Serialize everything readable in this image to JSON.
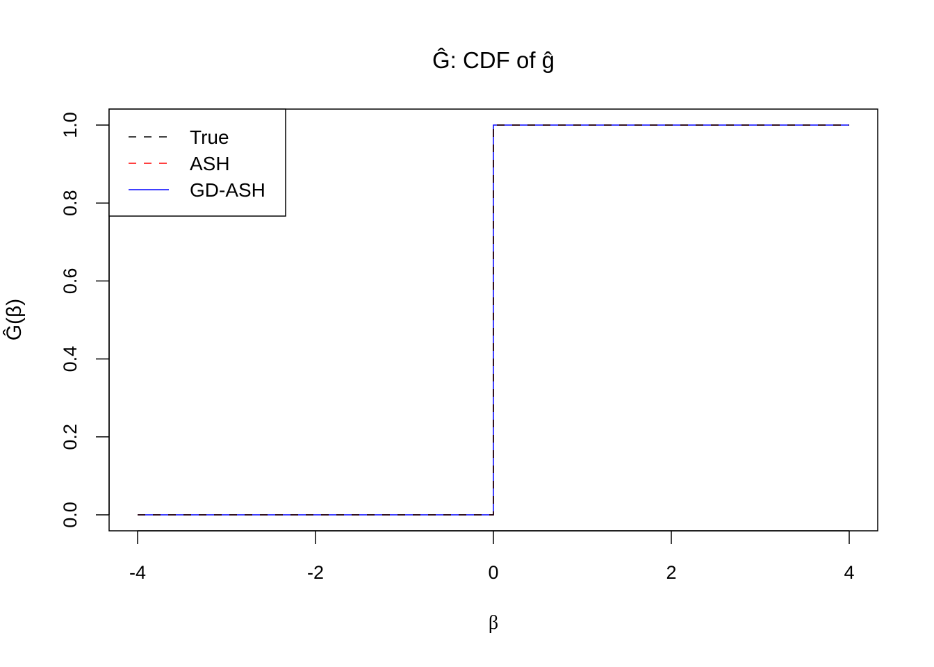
{
  "chart_data": {
    "type": "line",
    "title": "Ĝ: CDF of ĝ",
    "xlabel": "β",
    "ylabel": "Ĝ(β)",
    "xlim": [
      -4.32,
      4.32
    ],
    "ylim": [
      -0.04,
      1.04
    ],
    "x_ticks": [
      "-4",
      "-2",
      "0",
      "2",
      "4"
    ],
    "y_ticks": [
      "0.0",
      "0.2",
      "0.4",
      "0.6",
      "0.8",
      "1.0"
    ],
    "grid": false,
    "legend_position": "top-left",
    "series": [
      {
        "name": "True",
        "color": "#000000",
        "dash": "dashed",
        "x": [
          -4,
          0,
          0,
          4
        ],
        "y": [
          0,
          0,
          1,
          1
        ]
      },
      {
        "name": "ASH",
        "color": "#ff0000",
        "dash": "dashed",
        "x": [
          -4,
          0,
          0,
          4
        ],
        "y": [
          0,
          0,
          1,
          1
        ]
      },
      {
        "name": "GD-ASH",
        "color": "#0000ff",
        "dash": "solid",
        "x": [
          -4,
          0,
          0,
          4
        ],
        "y": [
          0,
          0,
          1,
          1
        ]
      }
    ]
  }
}
